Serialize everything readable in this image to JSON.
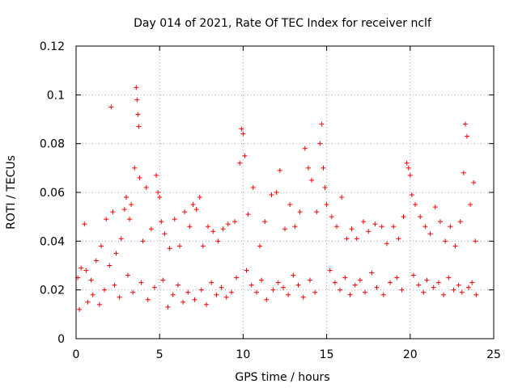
{
  "chart_data": {
    "type": "scatter",
    "title": "Day 014 of 2021, Rate Of TEC Index for receiver nclf",
    "xlabel": "GPS time / hours",
    "ylabel": "ROTI / TECUs",
    "xlim": [
      0,
      25
    ],
    "ylim": [
      0,
      0.12
    ],
    "xticks": [
      0,
      5,
      10,
      15,
      20,
      25
    ],
    "xtick_labels": [
      "0",
      "5",
      "10",
      "15",
      "20",
      "25"
    ],
    "yticks": [
      0,
      0.02,
      0.04,
      0.06,
      0.08,
      0.1,
      0.12
    ],
    "ytick_labels": [
      "0",
      "0.02",
      "0.04",
      "0.06",
      "0.08",
      "0.1",
      "0.12"
    ],
    "grid": true,
    "marker": "+",
    "color": "#ff0000",
    "series": [
      {
        "name": "ROTI",
        "x": [
          0.1,
          0.3,
          0.5,
          0.6,
          0.9,
          1.2,
          1.5,
          1.8,
          2.0,
          2.1,
          2.2,
          2.4,
          2.7,
          2.9,
          3.0,
          3.2,
          3.3,
          3.5,
          3.6,
          3.65,
          3.7,
          3.75,
          3.8,
          4.0,
          4.2,
          4.5,
          4.8,
          4.9,
          5.0,
          5.1,
          5.3,
          5.6,
          5.9,
          6.2,
          6.5,
          6.8,
          7.0,
          7.2,
          7.4,
          7.6,
          7.9,
          8.2,
          8.5,
          8.8,
          9.1,
          9.5,
          9.8,
          9.9,
          10.0,
          10.1,
          10.3,
          10.6,
          11.0,
          11.3,
          11.7,
          12.0,
          12.2,
          12.5,
          12.8,
          13.1,
          13.4,
          13.7,
          13.9,
          14.1,
          14.4,
          14.6,
          14.7,
          14.8,
          14.9,
          15.0,
          15.3,
          15.6,
          15.9,
          16.2,
          16.5,
          16.8,
          17.2,
          17.5,
          17.9,
          18.3,
          18.6,
          19.0,
          19.3,
          19.6,
          19.8,
          19.9,
          20.0,
          20.1,
          20.3,
          20.6,
          20.9,
          21.2,
          21.5,
          21.8,
          22.1,
          22.4,
          22.7,
          23.0,
          23.2,
          23.3,
          23.4,
          23.6,
          23.8,
          23.9,
          0.2,
          0.7,
          1.0,
          1.4,
          1.7,
          2.3,
          2.6,
          3.1,
          3.4,
          3.9,
          4.3,
          4.7,
          5.2,
          5.5,
          5.8,
          6.1,
          6.4,
          6.7,
          7.1,
          7.5,
          7.8,
          8.1,
          8.4,
          8.7,
          9.0,
          9.3,
          9.6,
          10.2,
          10.5,
          10.8,
          11.1,
          11.4,
          11.8,
          12.1,
          12.4,
          12.7,
          13.0,
          13.3,
          13.6,
          14.0,
          14.3,
          15.2,
          15.5,
          15.8,
          16.1,
          16.4,
          16.7,
          17.0,
          17.3,
          17.7,
          18.0,
          18.4,
          18.8,
          19.2,
          19.5,
          20.2,
          20.5,
          20.8,
          21.0,
          21.4,
          21.7,
          22.0,
          22.3,
          22.6,
          22.9,
          23.1,
          23.5,
          23.7,
          23.95
        ],
        "y": [
          0.025,
          0.029,
          0.047,
          0.028,
          0.024,
          0.032,
          0.038,
          0.049,
          0.03,
          0.095,
          0.052,
          0.035,
          0.041,
          0.053,
          0.058,
          0.049,
          0.055,
          0.07,
          0.103,
          0.098,
          0.092,
          0.087,
          0.066,
          0.04,
          0.062,
          0.045,
          0.067,
          0.06,
          0.058,
          0.048,
          0.043,
          0.037,
          0.049,
          0.038,
          0.052,
          0.046,
          0.055,
          0.053,
          0.058,
          0.038,
          0.046,
          0.044,
          0.04,
          0.045,
          0.047,
          0.048,
          0.072,
          0.086,
          0.084,
          0.075,
          0.051,
          0.062,
          0.038,
          0.048,
          0.059,
          0.06,
          0.069,
          0.045,
          0.055,
          0.046,
          0.052,
          0.078,
          0.07,
          0.065,
          0.052,
          0.08,
          0.088,
          0.07,
          0.062,
          0.055,
          0.05,
          0.046,
          0.058,
          0.041,
          0.045,
          0.041,
          0.048,
          0.044,
          0.047,
          0.046,
          0.039,
          0.046,
          0.041,
          0.05,
          0.072,
          0.07,
          0.067,
          0.059,
          0.055,
          0.05,
          0.046,
          0.043,
          0.054,
          0.048,
          0.04,
          0.046,
          0.038,
          0.048,
          0.068,
          0.088,
          0.083,
          0.055,
          0.064,
          0.04,
          0.012,
          0.015,
          0.018,
          0.014,
          0.02,
          0.022,
          0.017,
          0.026,
          0.019,
          0.023,
          0.016,
          0.021,
          0.024,
          0.013,
          0.018,
          0.022,
          0.015,
          0.019,
          0.016,
          0.02,
          0.014,
          0.023,
          0.018,
          0.021,
          0.017,
          0.019,
          0.025,
          0.028,
          0.022,
          0.019,
          0.024,
          0.016,
          0.02,
          0.023,
          0.021,
          0.018,
          0.026,
          0.022,
          0.017,
          0.024,
          0.019,
          0.028,
          0.023,
          0.02,
          0.025,
          0.018,
          0.022,
          0.024,
          0.019,
          0.027,
          0.021,
          0.018,
          0.023,
          0.025,
          0.02,
          0.026,
          0.022,
          0.019,
          0.024,
          0.021,
          0.023,
          0.018,
          0.025,
          0.02,
          0.022,
          0.019,
          0.021,
          0.023,
          0.018
        ]
      }
    ]
  }
}
